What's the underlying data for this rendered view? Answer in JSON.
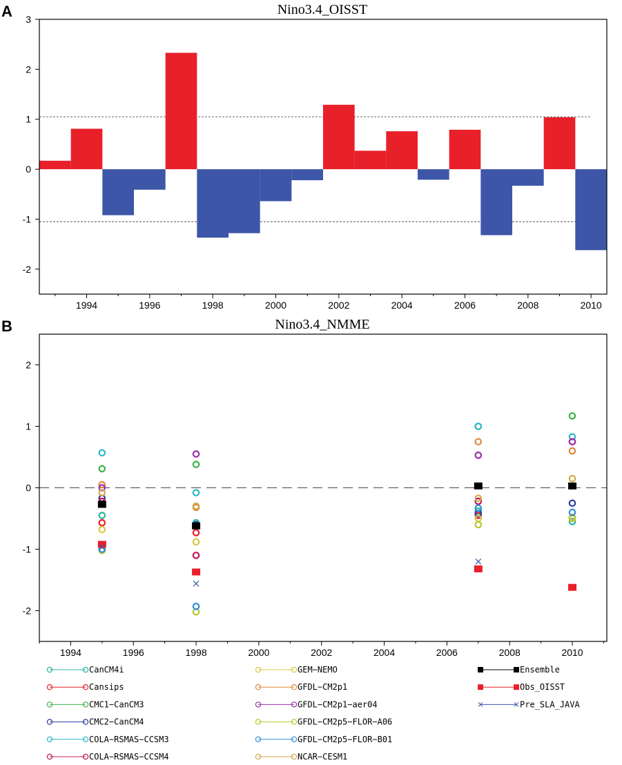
{
  "chart_data": [
    {
      "panel_label": "A",
      "type": "bar",
      "title": "Nino3.4_OISST",
      "xlabel": "",
      "ylabel": "",
      "x": [
        1993,
        1994,
        1995,
        1996,
        1997,
        1998,
        1999,
        2000,
        2001,
        2002,
        2003,
        2004,
        2005,
        2006,
        2007,
        2008,
        2009,
        2010
      ],
      "values": [
        0.17,
        0.81,
        -0.92,
        -0.41,
        2.33,
        -1.37,
        -1.28,
        -0.64,
        -0.22,
        1.29,
        0.37,
        0.76,
        -0.21,
        0.79,
        -1.32,
        -0.33,
        1.04,
        -1.62
      ],
      "positive_color": "#e8202a",
      "negative_color": "#3d56a8",
      "ylim": [
        -2.5,
        3
      ],
      "yticks": [
        "3",
        "2",
        "1",
        "0",
        "-1",
        "-2"
      ],
      "xticks": [
        "1994",
        "1996",
        "1998",
        "2000",
        "2002",
        "2004",
        "2006",
        "2008",
        "2010"
      ],
      "reference_lines": [
        1.05,
        -1.05
      ]
    },
    {
      "panel_label": "B",
      "type": "scatter",
      "title": "Nino3.4_NMME",
      "xlabel": "",
      "ylabel": "",
      "ylim": [
        -2.5,
        2.5
      ],
      "yticks": [
        "2",
        "1",
        "0",
        "-1",
        "-2"
      ],
      "xticks": [
        "1994",
        "1996",
        "1998",
        "2000",
        "2002",
        "2004",
        "2006",
        "2008",
        "2010"
      ],
      "reference_line": 0,
      "years": [
        1995,
        1998,
        2007,
        2010
      ],
      "series": [
        {
          "name": "CanCM4i",
          "color": "#2bb5a0",
          "marker": "circle",
          "values": [
            -0.45,
            -0.57,
            -0.38,
            -0.55
          ]
        },
        {
          "name": "Cansips",
          "color": "#e8202a",
          "marker": "circle",
          "values": [
            -0.57,
            -0.73,
            -0.45,
            -0.48
          ]
        },
        {
          "name": "CMC1−CanCM3",
          "color": "#3cb44b",
          "marker": "circle",
          "values": [
            0.31,
            0.38,
            1.0,
            1.17
          ]
        },
        {
          "name": "CMC2−CanCM4",
          "color": "#2e3a9e",
          "marker": "circle",
          "values": [
            -0.17,
            -0.6,
            -0.42,
            -0.25
          ]
        },
        {
          "name": "COLA−RSMAS−CCSM3",
          "color": "#2ab7c9",
          "marker": "circle",
          "values": [
            0.57,
            -0.08,
            1.0,
            0.83
          ]
        },
        {
          "name": "COLA−RSMAS−CCSM4",
          "color": "#c2185b",
          "marker": "circle",
          "values": [
            -0.22,
            -1.1,
            -0.22,
            0.75
          ]
        },
        {
          "name": "GEM−NEMO",
          "color": "#d7c84a",
          "marker": "circle",
          "values": [
            -0.68,
            -0.88,
            -0.5,
            -0.48
          ]
        },
        {
          "name": "GFDL−CM2p1",
          "color": "#e08a3c",
          "marker": "circle",
          "values": [
            0.05,
            -0.32,
            0.75,
            0.6
          ]
        },
        {
          "name": "GFDL−CM2p1−aer04",
          "color": "#9b2fae",
          "marker": "circle",
          "values": [
            0.0,
            0.55,
            0.53,
            0.75
          ]
        },
        {
          "name": "GFDL−CM2p5−FLOR−A06",
          "color": "#b8c82f",
          "marker": "circle",
          "values": [
            -1.02,
            -2.02,
            -0.6,
            -0.5
          ]
        },
        {
          "name": "GFDL−CM2p5−FLOR−B01",
          "color": "#2d8fd5",
          "marker": "circle",
          "values": [
            -1.0,
            -1.93,
            -0.33,
            -0.4
          ]
        },
        {
          "name": "NCAR−CESM1",
          "color": "#d4a84a",
          "marker": "circle",
          "values": [
            -0.08,
            -0.3,
            -0.17,
            0.15
          ]
        },
        {
          "name": "Ensemble",
          "color": "#000000",
          "marker": "square",
          "values": [
            -0.27,
            -0.62,
            0.03,
            0.03
          ]
        },
        {
          "name": "Obs_OISST",
          "color": "#e8202a",
          "marker": "square",
          "values": [
            -0.92,
            -1.37,
            -1.32,
            -1.62
          ]
        },
        {
          "name": "Pre_SLA_JAVA",
          "color": "#3d56a8",
          "marker": "x",
          "values": [
            -0.97,
            -1.56,
            -1.2,
            null
          ]
        }
      ]
    }
  ]
}
